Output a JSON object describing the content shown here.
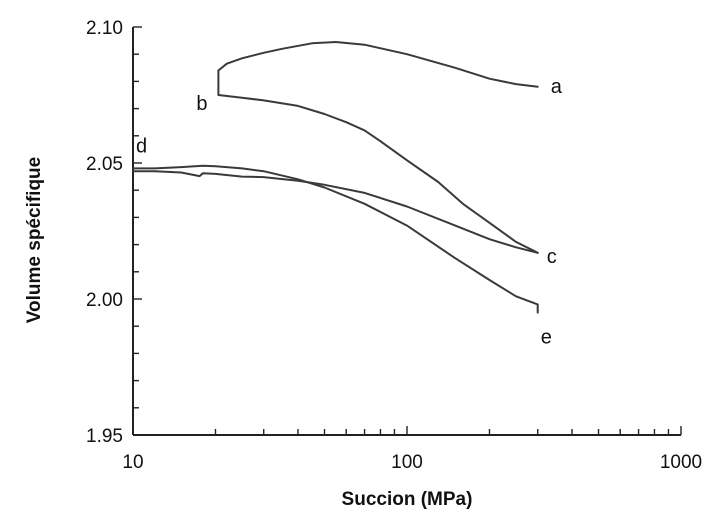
{
  "chart_data": {
    "type": "line",
    "xlabel": "Succion (MPa)",
    "ylabel": "Volume spécifique",
    "xscale": "log",
    "xlim": [
      10,
      1000
    ],
    "ylim": [
      1.95,
      2.1
    ],
    "x_ticks": [
      "10",
      "100",
      "1000"
    ],
    "y_ticks": [
      "1.95",
      "2.00",
      "2.05",
      "2.10"
    ],
    "series": [
      {
        "x": [
          300,
          250,
          200,
          150,
          100,
          70,
          55,
          45,
          35,
          30,
          25,
          22,
          20.5
        ],
        "y": [
          2.078,
          2.079,
          2.081,
          2.085,
          2.09,
          2.0935,
          2.0945,
          2.094,
          2.092,
          2.0905,
          2.0885,
          2.0865,
          2.084
        ]
      },
      {
        "x": [
          20.5,
          20.5,
          25,
          30,
          40,
          50,
          60,
          70,
          80,
          100,
          130,
          160,
          200,
          250,
          300
        ],
        "y": [
          2.084,
          2.075,
          2.074,
          2.073,
          2.071,
          2.068,
          2.065,
          2.062,
          2.058,
          2.051,
          2.043,
          2.035,
          2.028,
          2.021,
          2.017
        ]
      },
      {
        "x": [
          300,
          250,
          200,
          150,
          100,
          70,
          50,
          40,
          30,
          25,
          20,
          18,
          17.5,
          15,
          12,
          10
        ],
        "y": [
          2.017,
          2.019,
          2.022,
          2.027,
          2.034,
          2.039,
          2.042,
          2.0435,
          2.0448,
          2.045,
          2.046,
          2.0462,
          2.0452,
          2.0465,
          2.047,
          2.047
        ]
      },
      {
        "x": [
          10,
          12,
          15,
          18,
          20,
          25,
          30,
          40,
          50,
          70,
          100,
          150,
          200,
          250,
          300,
          300
        ],
        "y": [
          2.048,
          2.048,
          2.0485,
          2.049,
          2.0488,
          2.048,
          2.047,
          2.044,
          2.041,
          2.035,
          2.027,
          2.015,
          2.007,
          2.001,
          1.998,
          1.995
        ]
      }
    ],
    "annotations": [
      {
        "text": "a",
        "x": 300,
        "y": 2.078
      },
      {
        "text": "b",
        "x": 20.5,
        "y": 2.075
      },
      {
        "text": "c",
        "x": 300,
        "y": 2.017
      },
      {
        "text": "d",
        "x": 10,
        "y": 2.048
      },
      {
        "text": "e",
        "x": 300,
        "y": 1.995
      }
    ]
  }
}
